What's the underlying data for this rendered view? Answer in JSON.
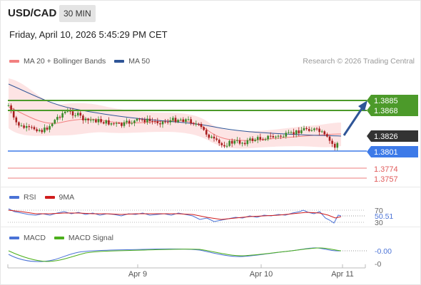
{
  "header": {
    "pair": "USD/CAD",
    "timeframe": "30 MIN",
    "datetime": "Friday, April 10, 2026 5:45:29 PM CET"
  },
  "legend_main": {
    "items": [
      {
        "label": "MA 20 + Bollinger Bands",
        "color": "#f28080"
      },
      {
        "label": "MA 50",
        "color": "#2f5597"
      }
    ],
    "credit": "Research © 2026 Trading Central"
  },
  "levels": [
    {
      "value": "1.3885",
      "kind": "resistance",
      "color": "#4c9a2a"
    },
    {
      "value": "1.3868",
      "kind": "resistance",
      "color": "#4c9a2a"
    },
    {
      "value": "1.3826",
      "kind": "last",
      "color": "#333333"
    },
    {
      "value": "1.3801",
      "kind": "pivot",
      "color": "#3d7ae8"
    },
    {
      "value": "1.3774",
      "kind": "support",
      "color": "#e05a5a"
    },
    {
      "value": "1.3757",
      "kind": "support",
      "color": "#e05a5a"
    }
  ],
  "rsi": {
    "legend": [
      {
        "label": "RSI",
        "color": "#4a72d6"
      },
      {
        "label": "9MA",
        "color": "#d01c1c"
      }
    ],
    "axis": [
      "70",
      "30"
    ],
    "value": "50.51"
  },
  "macd": {
    "legend": [
      {
        "label": "MACD",
        "color": "#4a72d6"
      },
      {
        "label": "MACD Signal",
        "color": "#4caf1c"
      }
    ],
    "value": "-0.00",
    "axis": [
      "-0"
    ]
  },
  "x_axis": [
    "Apr 9",
    "Apr 10",
    "Apr 11"
  ]
}
